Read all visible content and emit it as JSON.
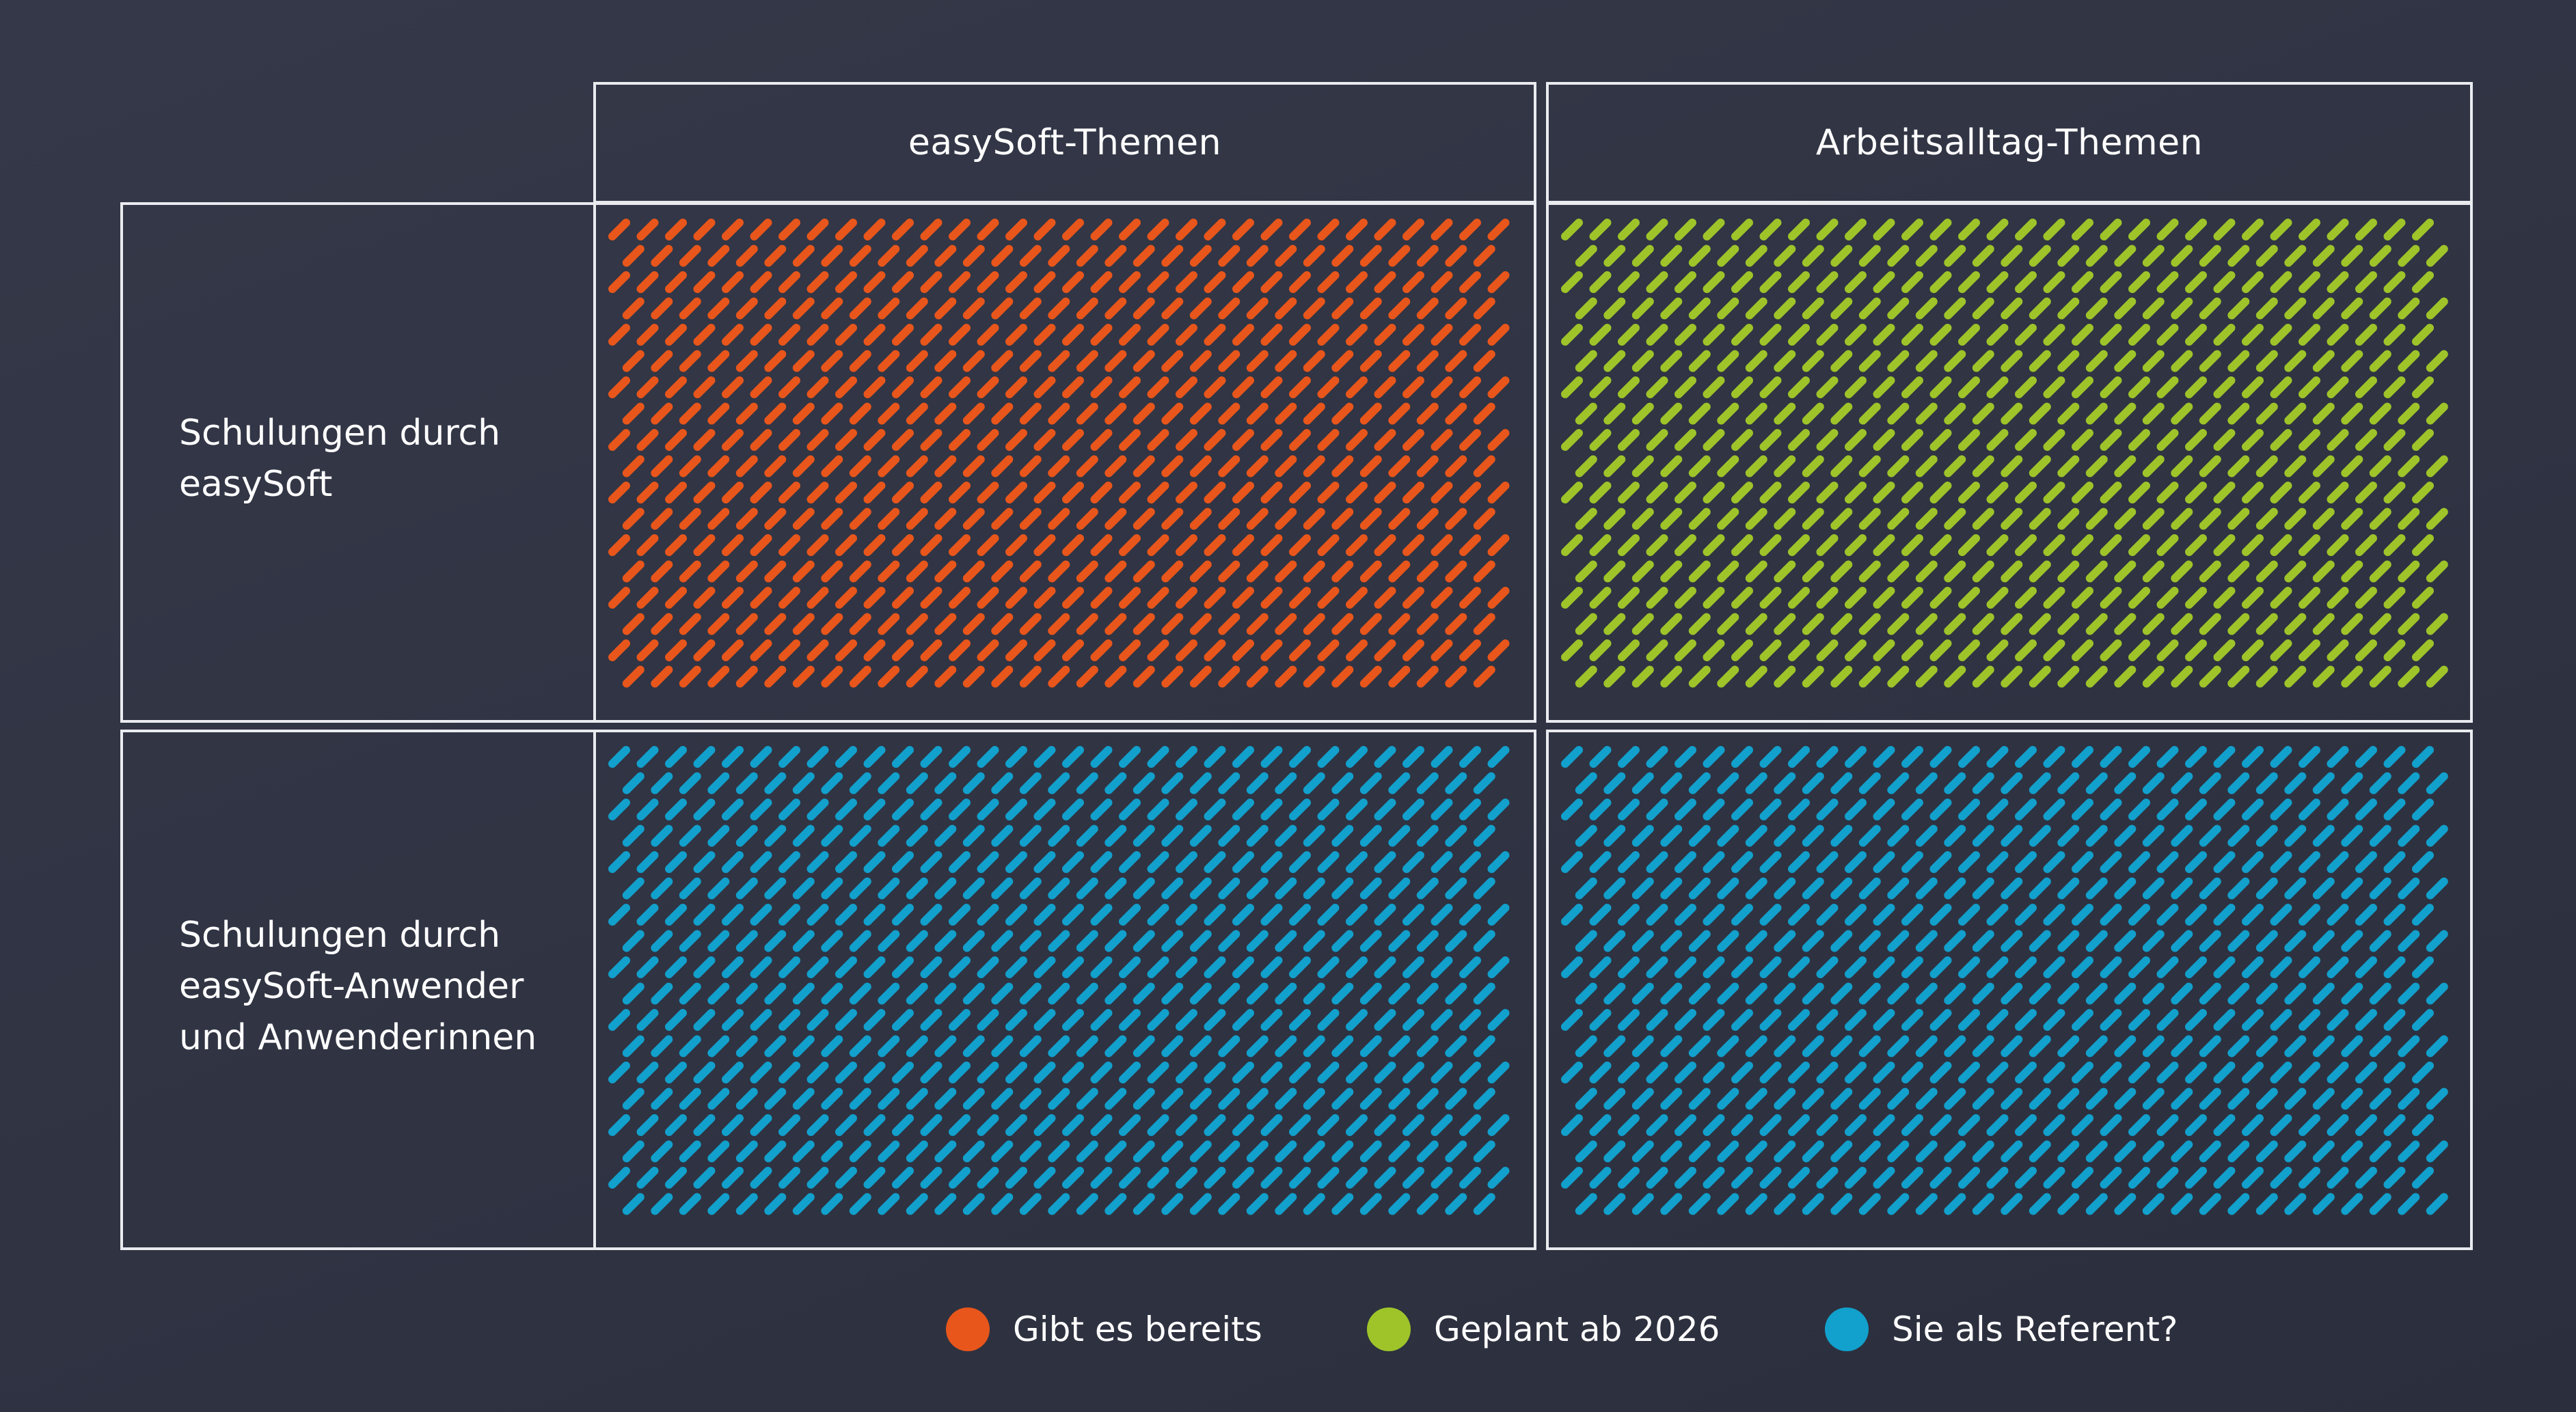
{
  "columns": {
    "easysoft": "easySoft-Themen",
    "arbeitsalltag": "Arbeitsalltag-Themen"
  },
  "rows": {
    "easysoft": [
      "Schulungen durch",
      "easySoft"
    ],
    "anwender": [
      "Schulungen durch",
      "easySoft-Anwender",
      "und Anwenderinnen"
    ]
  },
  "cells": [
    {
      "row": "easysoft",
      "column": "easysoft",
      "status": "bereits",
      "color": "#e8561b"
    },
    {
      "row": "easysoft",
      "column": "arbeitsalltag",
      "status": "geplant",
      "color": "#9ec42a"
    },
    {
      "row": "anwender",
      "column": "easysoft",
      "status": "referent",
      "color": "#12a0cc"
    },
    {
      "row": "anwender",
      "column": "arbeitsalltag",
      "status": "referent",
      "color": "#12a0cc"
    }
  ],
  "legend": [
    {
      "key": "bereits",
      "label": "Gibt es bereits",
      "color": "#e8561b"
    },
    {
      "key": "geplant",
      "label": "Geplant ab 2026",
      "color": "#9ec42a"
    },
    {
      "key": "referent",
      "label": "Sie als Referent?",
      "color": "#12a0cc"
    }
  ],
  "colors": {
    "background": "#30344a",
    "border": "#e9ebef",
    "text": "#ffffff"
  }
}
